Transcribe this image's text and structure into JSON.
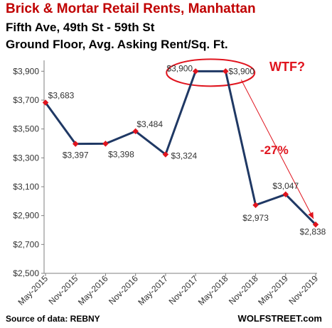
{
  "chart_data": {
    "type": "line",
    "title": "Brick & Mortar Retail Rents, Manhattan",
    "subtitle_1": "Fifth Ave, 49th St - 59th St",
    "subtitle_2": "Ground Floor,  Avg. Asking Rent/Sq. Ft.",
    "categories": [
      "May-2015",
      "Nov-2015",
      "May-2016",
      "Nov-2016",
      "May-2017",
      "Nov-2017",
      "May-2018",
      "Nov-2018",
      "May-2019",
      "Nov-2019"
    ],
    "values": [
      3683,
      3397,
      3398,
      3484,
      3324,
      3900,
      3900,
      2973,
      3047,
      2838
    ],
    "data_labels": [
      "$3,683",
      "$3,397",
      "$3,398",
      "$3,484",
      "$3,324",
      "$3,900",
      "$3,900",
      "$2,973",
      "$3,047",
      "$2,838"
    ],
    "ylim": [
      2500,
      4000
    ],
    "yticks": [
      2500,
      2700,
      2900,
      3100,
      3300,
      3500,
      3700,
      3900
    ],
    "ytick_labels": [
      "$2,500",
      "$2,700",
      "$2,900",
      "$3,100",
      "$3,300",
      "$3,500",
      "$3,700",
      "$3,900"
    ],
    "annotations": {
      "wtf": "WTF?",
      "decline": "-27%"
    },
    "source": "Source of data: REBNY",
    "credit": "WOLFSTREET.com",
    "colors": {
      "title": "#c00000",
      "line": "#1f3864",
      "marker": "#e0141e",
      "annotation": "#e0141e",
      "axis": "#7f7f7f"
    }
  }
}
